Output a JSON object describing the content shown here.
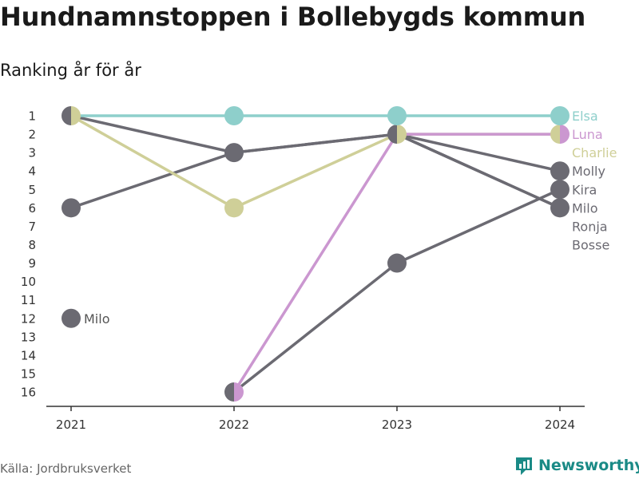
{
  "title": "Hundnamnstoppen i Bollebygds kommun",
  "subtitle": "Ranking år för år",
  "source": "Källa: Jordbruksverket",
  "brand": "Newsworthy",
  "chart_data": {
    "type": "line",
    "chart_kind": "bump",
    "x": [
      "2021",
      "2022",
      "2023",
      "2024"
    ],
    "y_ticks": [
      1,
      2,
      3,
      4,
      5,
      6,
      7,
      8,
      9,
      10,
      11,
      12,
      13,
      14,
      15,
      16
    ],
    "ylim": [
      1,
      16
    ],
    "y_reversed": true,
    "grid": false,
    "series": [
      {
        "name": "Bosse",
        "values": [
          6,
          3,
          2,
          6
        ],
        "color": "#6b6a72"
      },
      {
        "name": "Ronja",
        "values": [
          1,
          3,
          2,
          6
        ],
        "color": "#6b6a72"
      },
      {
        "name": "Milo",
        "values": [
          12,
          null,
          null,
          6
        ],
        "color": "#6b6a72"
      },
      {
        "name": "Kira",
        "values": [
          null,
          16,
          9,
          5
        ],
        "color": "#6b6a72"
      },
      {
        "name": "Molly",
        "values": [
          null,
          null,
          2,
          4
        ],
        "color": "#6b6a72"
      },
      {
        "name": "Charlie",
        "values": [
          1,
          6,
          2,
          2
        ],
        "color": "#cfcf98"
      },
      {
        "name": "Luna",
        "values": [
          null,
          16,
          2,
          2
        ],
        "color": "#cb97d0"
      },
      {
        "name": "Elsa",
        "values": [
          1,
          1,
          1,
          1
        ],
        "color": "#8ecfcb"
      }
    ],
    "end_labels": [
      {
        "text": "Elsa",
        "rank": 1,
        "color": "#8ecfcb"
      },
      {
        "text": "Luna",
        "rank": 2,
        "color": "#cb97d0"
      },
      {
        "text": "Charlie",
        "rank": 3,
        "color": "#cfcf98"
      },
      {
        "text": "Molly",
        "rank": 4,
        "color": "#6b6a72"
      },
      {
        "text": "Kira",
        "rank": 5,
        "color": "#6b6a72"
      },
      {
        "text": "Milo",
        "rank": 6,
        "color": "#6b6a72"
      },
      {
        "text": "Ronja",
        "rank": 7,
        "color": "#6b6a72"
      },
      {
        "text": "Bosse",
        "rank": 8,
        "color": "#6b6a72"
      }
    ],
    "annotations": [
      {
        "text": "Milo",
        "x": "2021",
        "rank": 12,
        "color": "#555555"
      }
    ]
  }
}
